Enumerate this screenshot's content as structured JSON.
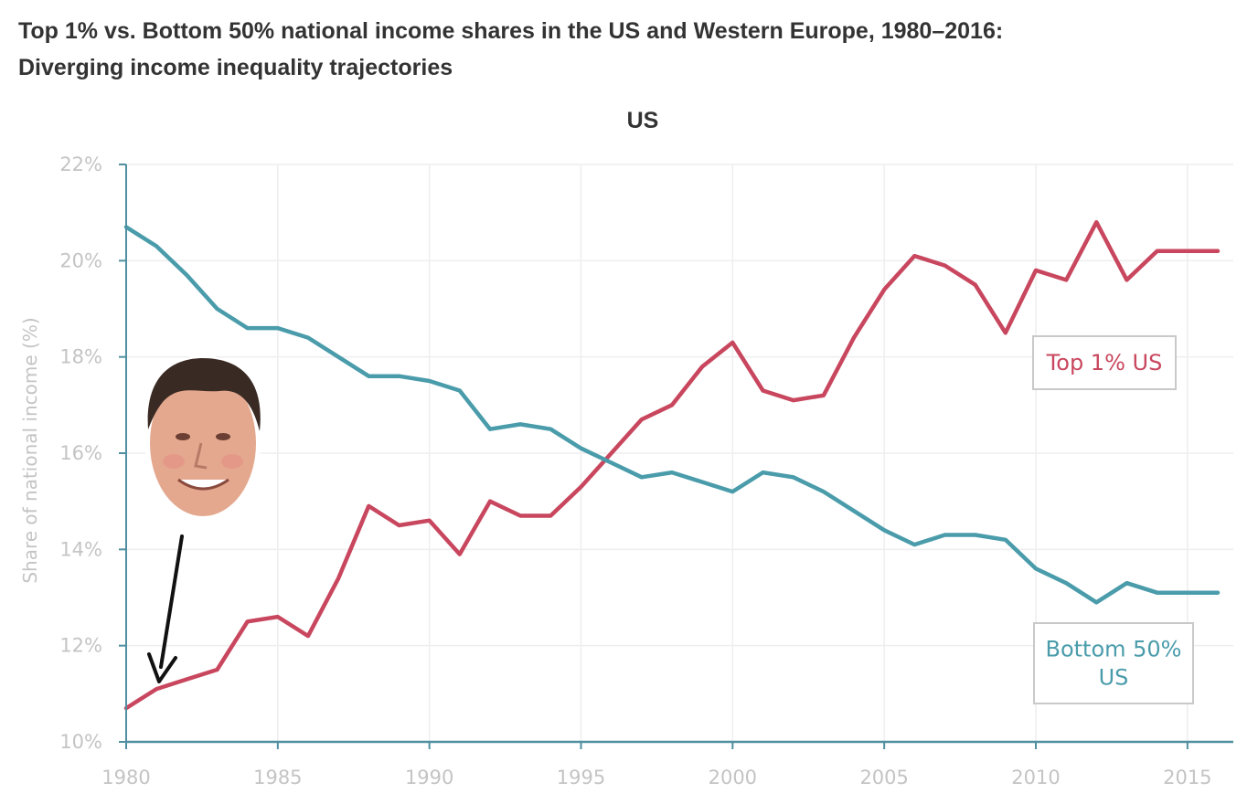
{
  "title": {
    "line1": "Top 1% vs. Bottom 50% national income shares in the US and Western Europe, 1980–2016:",
    "line2": "Diverging income inequality trajectories"
  },
  "colors": {
    "top1": "#c8475e",
    "bottom50": "#4a9cab",
    "grid": "#eeeeee",
    "axis": "#4f8fa0",
    "tick_text": "#c4c4c4"
  },
  "chart_data": {
    "type": "line",
    "subtitle": "US",
    "ylabel": "Share of national income (%)",
    "xlabel": "",
    "xlim": [
      1980,
      2016
    ],
    "ylim": [
      10,
      22
    ],
    "x_ticks": [
      1980,
      1985,
      1990,
      1995,
      2000,
      2005,
      2010,
      2015
    ],
    "x_tick_labels": [
      "1980",
      "1985",
      "1990",
      "1995",
      "2000",
      "2005",
      "2010",
      "2015"
    ],
    "y_ticks": [
      10,
      12,
      14,
      16,
      18,
      20,
      22
    ],
    "y_tick_labels": [
      "10%",
      "12%",
      "14%",
      "16%",
      "18%",
      "20%",
      "22%"
    ],
    "grid": true,
    "x": [
      1980,
      1981,
      1982,
      1983,
      1984,
      1985,
      1986,
      1987,
      1988,
      1989,
      1990,
      1991,
      1992,
      1993,
      1994,
      1995,
      1996,
      1997,
      1998,
      1999,
      2000,
      2001,
      2002,
      2003,
      2004,
      2005,
      2006,
      2007,
      2008,
      2009,
      2010,
      2011,
      2012,
      2013,
      2014,
      2015,
      2016
    ],
    "series": [
      {
        "name": "Top 1% US",
        "color_key": "top1",
        "values": [
          10.7,
          11.1,
          11.3,
          11.5,
          12.5,
          12.6,
          12.2,
          13.4,
          14.9,
          14.5,
          14.6,
          13.9,
          15.0,
          14.7,
          14.7,
          15.3,
          16.0,
          16.7,
          17.0,
          17.8,
          18.3,
          17.3,
          17.1,
          17.2,
          18.4,
          19.4,
          20.1,
          19.9,
          19.5,
          18.5,
          19.8,
          19.6,
          20.8,
          19.6,
          20.2,
          20.2,
          20.2
        ]
      },
      {
        "name": "Bottom 50% US",
        "color_key": "bottom50",
        "values": [
          20.7,
          20.3,
          19.7,
          19.0,
          18.6,
          18.6,
          18.4,
          18.0,
          17.6,
          17.6,
          17.5,
          17.3,
          16.5,
          16.6,
          16.5,
          16.1,
          15.8,
          15.5,
          15.6,
          15.4,
          15.2,
          15.6,
          15.5,
          15.2,
          14.8,
          14.4,
          14.1,
          14.3,
          14.3,
          14.2,
          13.6,
          13.3,
          12.9,
          13.3,
          13.1,
          13.1,
          13.1
        ]
      }
    ],
    "legend": [
      {
        "label_lines": [
          "Top 1% US"
        ],
        "color_key": "top1",
        "placement": "right"
      },
      {
        "label_lines": [
          "Bottom 50%",
          "US"
        ],
        "color_key": "bottom50",
        "placement": "bottom-right"
      }
    ]
  },
  "annotation": {
    "portrait_icon": "face-photo",
    "arrow_icon": "arrow-down-icon",
    "arrow_target_year": 1981
  }
}
